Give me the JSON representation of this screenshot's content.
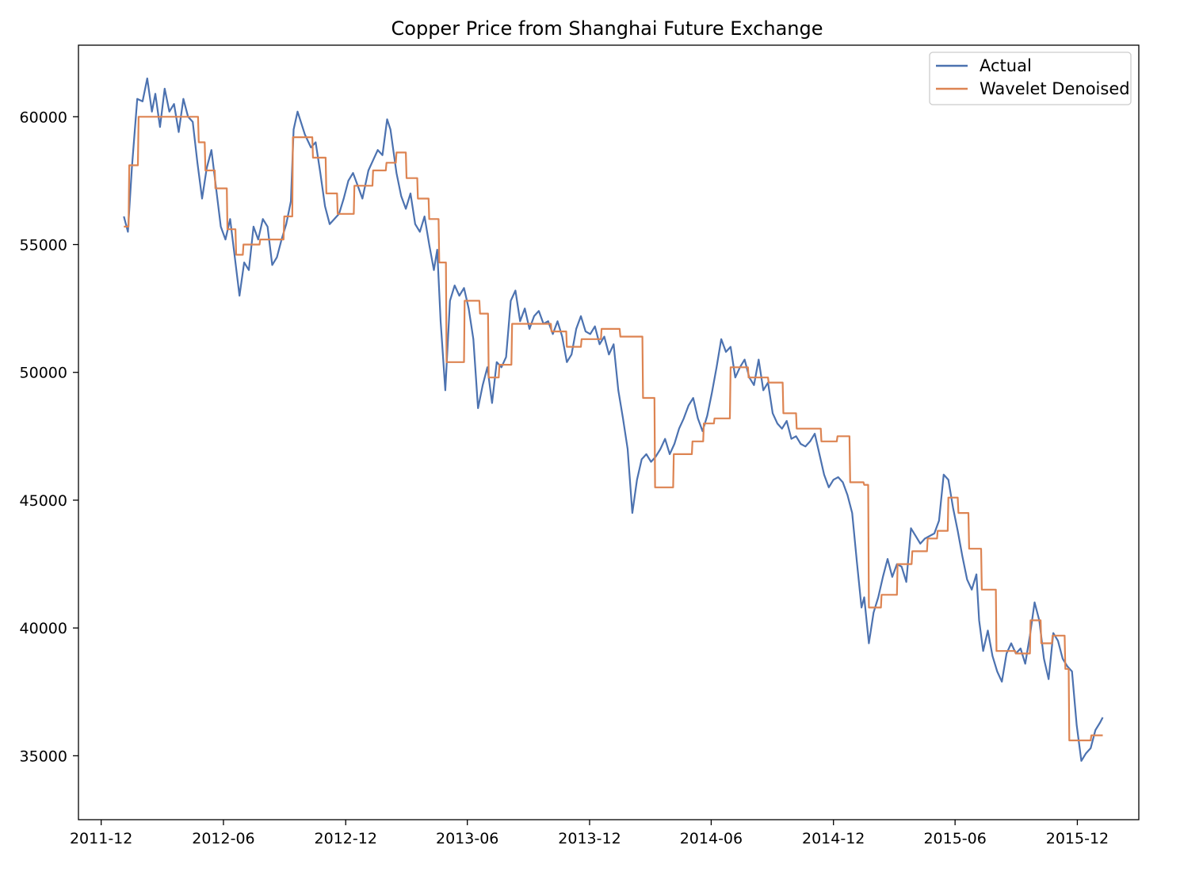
{
  "chart_data": {
    "type": "line",
    "title": "Copper Price from Shanghai Future Exchange",
    "xlabel": "",
    "ylabel": "",
    "x_ticks": [
      "2011-12",
      "2012-06",
      "2012-12",
      "2013-06",
      "2013-12",
      "2014-06",
      "2014-12",
      "2015-06",
      "2015-12"
    ],
    "y_ticks": [
      35000,
      40000,
      45000,
      50000,
      55000,
      60000
    ],
    "xlim": [
      "2011-10-28",
      "2016-03-02"
    ],
    "ylim": [
      32500,
      62800
    ],
    "grid": false,
    "legend": "top-right",
    "colors": {
      "actual": "#4c72b0",
      "denoised": "#dd8452"
    },
    "series": [
      {
        "name": "Actual",
        "x": [
          "2012-01-04",
          "2012-01-10",
          "2012-01-16",
          "2012-01-24",
          "2012-02-01",
          "2012-02-08",
          "2012-02-15",
          "2012-02-20",
          "2012-02-27",
          "2012-03-05",
          "2012-03-12",
          "2012-03-19",
          "2012-03-26",
          "2012-04-02",
          "2012-04-09",
          "2012-04-16",
          "2012-04-23",
          "2012-04-30",
          "2012-05-07",
          "2012-05-14",
          "2012-05-21",
          "2012-05-28",
          "2012-06-04",
          "2012-06-11",
          "2012-06-18",
          "2012-06-25",
          "2012-07-02",
          "2012-07-09",
          "2012-07-16",
          "2012-07-23",
          "2012-07-30",
          "2012-08-06",
          "2012-08-13",
          "2012-08-20",
          "2012-08-27",
          "2012-09-03",
          "2012-09-10",
          "2012-09-14",
          "2012-09-20",
          "2012-10-01",
          "2012-10-10",
          "2012-10-17",
          "2012-10-24",
          "2012-10-31",
          "2012-11-07",
          "2012-11-14",
          "2012-11-21",
          "2012-11-28",
          "2012-12-05",
          "2012-12-12",
          "2012-12-19",
          "2012-12-26",
          "2013-01-04",
          "2013-01-11",
          "2013-01-18",
          "2013-01-25",
          "2013-02-01",
          "2013-02-06",
          "2013-02-15",
          "2013-02-22",
          "2013-03-01",
          "2013-03-08",
          "2013-03-15",
          "2013-03-22",
          "2013-03-29",
          "2013-04-05",
          "2013-04-12",
          "2013-04-17",
          "2013-04-22",
          "2013-04-29",
          "2013-05-06",
          "2013-05-13",
          "2013-05-20",
          "2013-05-27",
          "2013-06-03",
          "2013-06-10",
          "2013-06-17",
          "2013-06-24",
          "2013-07-01",
          "2013-07-08",
          "2013-07-15",
          "2013-07-22",
          "2013-07-29",
          "2013-08-05",
          "2013-08-12",
          "2013-08-19",
          "2013-08-26",
          "2013-09-02",
          "2013-09-09",
          "2013-09-16",
          "2013-09-23",
          "2013-09-30",
          "2013-10-07",
          "2013-10-14",
          "2013-10-21",
          "2013-10-28",
          "2013-11-04",
          "2013-11-11",
          "2013-11-18",
          "2013-11-25",
          "2013-12-02",
          "2013-12-09",
          "2013-12-16",
          "2013-12-23",
          "2013-12-30",
          "2014-01-06",
          "2014-01-13",
          "2014-01-20",
          "2014-01-27",
          "2014-02-03",
          "2014-02-10",
          "2014-02-17",
          "2014-02-24",
          "2014-03-03",
          "2014-03-10",
          "2014-03-17",
          "2014-03-24",
          "2014-03-31",
          "2014-04-07",
          "2014-04-14",
          "2014-04-21",
          "2014-04-28",
          "2014-05-05",
          "2014-05-12",
          "2014-05-19",
          "2014-05-26",
          "2014-06-02",
          "2014-06-09",
          "2014-06-16",
          "2014-06-23",
          "2014-06-30",
          "2014-07-07",
          "2014-07-14",
          "2014-07-21",
          "2014-07-28",
          "2014-08-04",
          "2014-08-11",
          "2014-08-18",
          "2014-08-25",
          "2014-09-01",
          "2014-09-08",
          "2014-09-15",
          "2014-09-22",
          "2014-09-29",
          "2014-10-06",
          "2014-10-13",
          "2014-10-20",
          "2014-10-27",
          "2014-11-03",
          "2014-11-10",
          "2014-11-17",
          "2014-11-24",
          "2014-12-01",
          "2014-12-08",
          "2014-12-15",
          "2014-12-22",
          "2014-12-29",
          "2015-01-05",
          "2015-01-12",
          "2015-01-16",
          "2015-01-23",
          "2015-01-30",
          "2015-02-06",
          "2015-02-13",
          "2015-02-20",
          "2015-02-27",
          "2015-03-06",
          "2015-03-13",
          "2015-03-20",
          "2015-03-27",
          "2015-04-03",
          "2015-04-10",
          "2015-04-17",
          "2015-04-24",
          "2015-05-01",
          "2015-05-08",
          "2015-05-15",
          "2015-05-22",
          "2015-05-29",
          "2015-06-05",
          "2015-06-12",
          "2015-06-19",
          "2015-06-26",
          "2015-07-03",
          "2015-07-07",
          "2015-07-13",
          "2015-07-20",
          "2015-07-27",
          "2015-08-03",
          "2015-08-10",
          "2015-08-17",
          "2015-08-24",
          "2015-08-31",
          "2015-09-07",
          "2015-09-14",
          "2015-09-21",
          "2015-09-28",
          "2015-10-05",
          "2015-10-12",
          "2015-10-19",
          "2015-10-26",
          "2015-11-02",
          "2015-11-09",
          "2015-11-16",
          "2015-11-23",
          "2015-11-30",
          "2015-12-07",
          "2015-12-14",
          "2015-12-21",
          "2015-12-28",
          "2016-01-04",
          "2016-01-08"
        ],
        "values": [
          56100,
          55500,
          58000,
          60700,
          60600,
          61500,
          60200,
          60900,
          59600,
          61100,
          60200,
          60500,
          59400,
          60700,
          60000,
          59800,
          58200,
          56800,
          58000,
          58700,
          57200,
          55700,
          55200,
          56000,
          54500,
          53000,
          54300,
          54000,
          55700,
          55200,
          56000,
          55700,
          54200,
          54500,
          55200,
          55800,
          56700,
          59500,
          60200,
          59300,
          58800,
          59000,
          57800,
          56500,
          55800,
          56000,
          56200,
          56800,
          57500,
          57800,
          57300,
          56800,
          57900,
          58300,
          58700,
          58500,
          59900,
          59500,
          57800,
          56900,
          56400,
          57000,
          55800,
          55500,
          56100,
          55000,
          54000,
          54800,
          52000,
          49300,
          52800,
          53400,
          53000,
          53300,
          52500,
          51300,
          48600,
          49500,
          50200,
          48800,
          50400,
          50200,
          50600,
          52800,
          53200,
          52000,
          52500,
          51700,
          52200,
          52400,
          51900,
          52000,
          51500,
          52000,
          51400,
          50400,
          50700,
          51700,
          52200,
          51600,
          51500,
          51800,
          51100,
          51400,
          50700,
          51100,
          49300,
          48200,
          47000,
          44500,
          45800,
          46600,
          46800,
          46500,
          46700,
          47000,
          47400,
          46800,
          47200,
          47800,
          48200,
          48700,
          49000,
          48200,
          47700,
          48300,
          49200,
          50200,
          51300,
          50800,
          51000,
          49800,
          50200,
          50500,
          49800,
          49500,
          50500,
          49300,
          49600,
          48400,
          48000,
          47800,
          48100,
          47400,
          47500,
          47200,
          47100,
          47300,
          47600,
          46800,
          46000,
          45500,
          45800,
          45900,
          45700,
          45200,
          44500,
          42600,
          40800,
          41200,
          39400,
          40600,
          41200,
          42000,
          42700,
          42000,
          42500,
          42400,
          41800,
          43900,
          43600,
          43300,
          43500,
          43600,
          43700,
          44200,
          46000,
          45800,
          44700,
          43800,
          42800,
          41900,
          41500,
          42100,
          40300,
          39100,
          39900,
          38900,
          38300,
          37900,
          39000,
          39400,
          39000,
          39200,
          38600,
          39700,
          41000,
          40300,
          38800,
          38000,
          39800,
          39500,
          38800,
          38500,
          38300,
          36200,
          34800,
          35100,
          35300,
          36000,
          36300,
          36500
        ]
      },
      {
        "name": "Wavelet Denoised",
        "x": [
          "2012-01-04",
          "2012-01-11",
          "2012-01-12",
          "2012-01-25",
          "2012-01-26",
          "2012-04-24",
          "2012-04-25",
          "2012-05-04",
          "2012-05-05",
          "2012-05-19",
          "2012-05-20",
          "2012-06-06",
          "2012-06-07",
          "2012-06-19",
          "2012-06-20",
          "2012-06-30",
          "2012-07-01",
          "2012-07-25",
          "2012-07-26",
          "2012-08-30",
          "2012-08-31",
          "2012-09-12",
          "2012-09-13",
          "2012-10-12",
          "2012-10-13",
          "2012-11-01",
          "2012-11-02",
          "2012-11-18",
          "2012-11-19",
          "2012-12-13",
          "2012-12-14",
          "2013-01-10",
          "2013-01-11",
          "2013-01-30",
          "2013-01-31",
          "2013-02-14",
          "2013-02-15",
          "2013-03-01",
          "2013-03-02",
          "2013-03-18",
          "2013-03-19",
          "2013-04-04",
          "2013-04-05",
          "2013-04-19",
          "2013-04-20",
          "2013-04-30",
          "2013-05-01",
          "2013-05-27",
          "2013-05-28",
          "2013-06-19",
          "2013-06-20",
          "2013-07-02",
          "2013-07-03",
          "2013-07-18",
          "2013-07-19",
          "2013-08-06",
          "2013-08-07",
          "2013-10-04",
          "2013-10-05",
          "2013-10-27",
          "2013-10-28",
          "2013-11-18",
          "2013-11-19",
          "2013-12-18",
          "2013-12-19",
          "2014-01-15",
          "2014-01-16",
          "2014-02-18",
          "2014-02-19",
          "2014-03-08",
          "2014-03-09",
          "2014-04-05",
          "2014-04-06",
          "2014-05-03",
          "2014-05-04",
          "2014-05-20",
          "2014-05-21",
          "2014-06-05",
          "2014-06-06",
          "2014-06-29",
          "2014-06-30",
          "2014-07-26",
          "2014-07-27",
          "2014-08-25",
          "2014-08-26",
          "2014-09-16",
          "2014-09-17",
          "2014-10-06",
          "2014-10-07",
          "2014-11-12",
          "2014-11-13",
          "2014-12-06",
          "2014-12-07",
          "2014-12-25",
          "2014-12-26",
          "2015-01-15",
          "2015-01-16",
          "2015-01-22",
          "2015-01-23",
          "2015-02-10",
          "2015-02-11",
          "2015-03-06",
          "2015-03-07",
          "2015-03-28",
          "2015-03-29",
          "2015-04-20",
          "2015-04-21",
          "2015-05-05",
          "2015-05-06",
          "2015-05-21",
          "2015-05-22",
          "2015-06-05",
          "2015-06-06",
          "2015-06-21",
          "2015-06-22",
          "2015-07-10",
          "2015-07-11",
          "2015-08-01",
          "2015-08-02",
          "2015-08-30",
          "2015-08-31",
          "2015-09-21",
          "2015-09-22",
          "2015-10-07",
          "2015-10-08",
          "2015-10-24",
          "2015-10-25",
          "2015-11-12",
          "2015-11-13",
          "2015-11-18",
          "2015-11-19",
          "2015-12-21",
          "2015-12-22",
          "2016-01-08"
        ],
        "values": [
          55700,
          55700,
          58100,
          58100,
          60000,
          60000,
          59000,
          59000,
          57900,
          57900,
          57200,
          57200,
          55600,
          55600,
          54600,
          54600,
          55000,
          55000,
          55200,
          55200,
          56100,
          56100,
          59200,
          59200,
          58400,
          58400,
          57000,
          57000,
          56200,
          56200,
          57300,
          57300,
          57900,
          57900,
          58200,
          58200,
          58600,
          58600,
          57600,
          57600,
          56800,
          56800,
          56000,
          56000,
          54300,
          54300,
          50400,
          50400,
          52800,
          52800,
          52300,
          52300,
          49800,
          49800,
          50300,
          50300,
          51900,
          51900,
          51600,
          51600,
          51000,
          51000,
          51300,
          51300,
          51700,
          51700,
          51400,
          51400,
          49000,
          49000,
          45500,
          45500,
          46800,
          46800,
          47300,
          47300,
          48000,
          48000,
          48200,
          48200,
          50200,
          50200,
          49800,
          49800,
          49600,
          49600,
          48400,
          48400,
          47800,
          47800,
          47300,
          47300,
          47500,
          47500,
          45700,
          45700,
          45600,
          45600,
          40800,
          40800,
          41300,
          41300,
          42500,
          42500,
          43000,
          43000,
          43500,
          43500,
          43800,
          43800,
          45100,
          45100,
          44500,
          44500,
          43100,
          43100,
          41500,
          41500,
          39100,
          39100,
          39000,
          39000,
          40300,
          40300,
          39400,
          39400,
          39700,
          39700,
          38400,
          38400,
          35600,
          35600,
          35800,
          35800
        ]
      }
    ]
  }
}
